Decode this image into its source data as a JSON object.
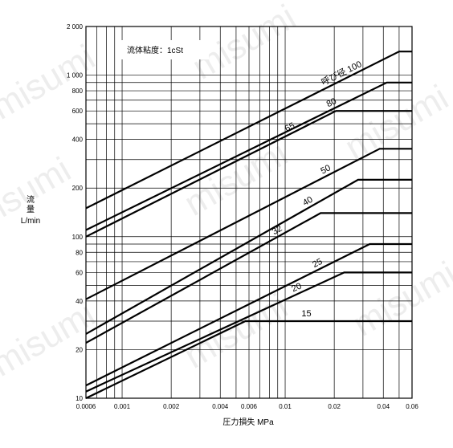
{
  "watermark": "misumi",
  "chart_data": {
    "type": "line",
    "xscale": "log",
    "yscale": "log",
    "xlim": [
      0.0006,
      0.06
    ],
    "ylim": [
      10,
      2000
    ],
    "grid": true,
    "xlabel": "圧力損失 MPa",
    "ylabel_line1": "流",
    "ylabel_line2": "量",
    "ylabel_line3": "L/min",
    "note": "流体粘度：1cSt",
    "series_prefix": "呼び径",
    "x_ticks": [
      {
        "v": 0.0006,
        "label": "0.0006"
      },
      {
        "v": 0.001,
        "label": "0.001"
      },
      {
        "v": 0.002,
        "label": "0.002"
      },
      {
        "v": 0.004,
        "label": "0.004"
      },
      {
        "v": 0.006,
        "label": "0.006"
      },
      {
        "v": 0.01,
        "label": "0.01"
      },
      {
        "v": 0.02,
        "label": "0.02"
      },
      {
        "v": 0.04,
        "label": "0.04"
      },
      {
        "v": 0.06,
        "label": "0.06"
      }
    ],
    "y_ticks": [
      {
        "v": 10,
        "label": "10"
      },
      {
        "v": 20,
        "label": "20"
      },
      {
        "v": 40,
        "label": "40"
      },
      {
        "v": 60,
        "label": "60"
      },
      {
        "v": 80,
        "label": "80"
      },
      {
        "v": 100,
        "label": "100"
      },
      {
        "v": 200,
        "label": "200"
      },
      {
        "v": 400,
        "label": "400"
      },
      {
        "v": 600,
        "label": "600"
      },
      {
        "v": 800,
        "label": "800"
      },
      {
        "v": 1000,
        "label": "1 000"
      },
      {
        "v": 2000,
        "label": "2 000"
      }
    ],
    "series": [
      {
        "name": "100",
        "x": [
          0.0006,
          0.05,
          0.06
        ],
        "y": [
          150,
          1400,
          1400
        ]
      },
      {
        "name": "80",
        "x": [
          0.0006,
          0.042,
          0.06
        ],
        "y": [
          110,
          900,
          900
        ]
      },
      {
        "name": "65",
        "x": [
          0.0006,
          0.0205,
          0.06
        ],
        "y": [
          100,
          600,
          600
        ]
      },
      {
        "name": "50",
        "x": [
          0.0006,
          0.038,
          0.06
        ],
        "y": [
          41,
          350,
          350
        ]
      },
      {
        "name": "40",
        "x": [
          0.0006,
          0.028,
          0.06
        ],
        "y": [
          25,
          225,
          225
        ]
      },
      {
        "name": "32",
        "x": [
          0.0006,
          0.0165,
          0.06
        ],
        "y": [
          22,
          140,
          140
        ]
      },
      {
        "name": "25",
        "x": [
          0.0006,
          0.033,
          0.06
        ],
        "y": [
          12,
          90,
          90
        ]
      },
      {
        "name": "20",
        "x": [
          0.0006,
          0.023,
          0.06
        ],
        "y": [
          11,
          60,
          60
        ]
      },
      {
        "name": "15",
        "x": [
          0.0006,
          0.0057,
          0.06
        ],
        "y": [
          10,
          30,
          30
        ]
      }
    ]
  }
}
